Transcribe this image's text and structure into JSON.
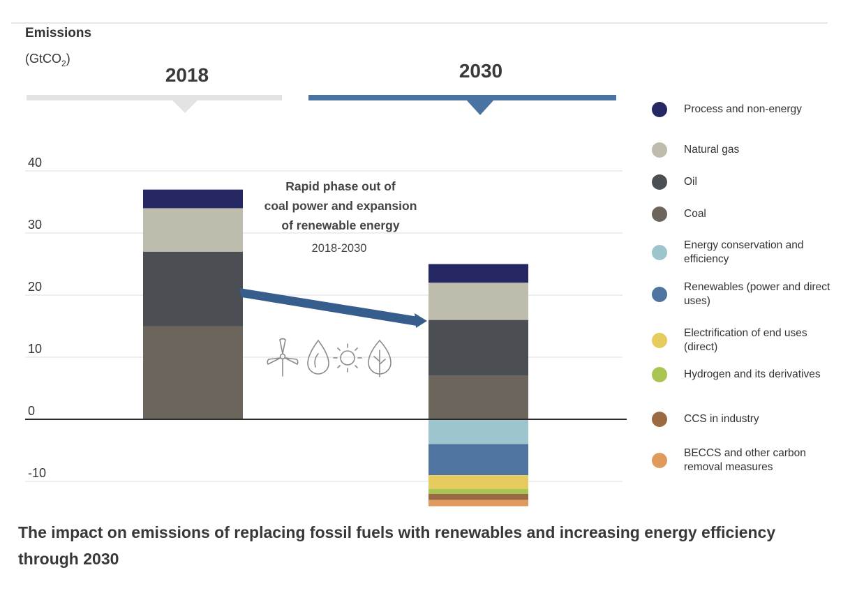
{
  "chart_data": {
    "type": "bar",
    "stacked": true,
    "title": "The impact on emissions of replacing fossil fuels with renewables and increasing energy efficiency through 2030",
    "ylabel_line1": "Emissions",
    "ylabel_unit_prefix": "(GtCO",
    "ylabel_unit_sub": "2",
    "ylabel_unit_suffix": ")",
    "ylim": [
      -14,
      40
    ],
    "yticks": [
      40,
      30,
      20,
      10,
      0,
      -10
    ],
    "ytick_labels": [
      "40",
      "30",
      "20",
      "10",
      "0",
      "-10"
    ],
    "grid": true,
    "legend_position": "right",
    "categories": [
      "2018",
      "2030"
    ],
    "series": [
      {
        "name": "Coal",
        "color": "#6b655b",
        "values": [
          15,
          7
        ]
      },
      {
        "name": "Oil",
        "color": "#4b4f54",
        "values": [
          12,
          9
        ]
      },
      {
        "name": "Natural gas",
        "color": "#bdbcad",
        "values": [
          7,
          6
        ]
      },
      {
        "name": "Process and non-energy",
        "color": "#252762",
        "values": [
          3,
          3
        ]
      },
      {
        "name": "Energy conservation and efficiency",
        "color": "#9ec5cd",
        "values": [
          0,
          -4
        ]
      },
      {
        "name": "Renewables (power and direct uses)",
        "color": "#4f749f",
        "values": [
          0,
          -5
        ]
      },
      {
        "name": "Electrification of end uses (direct)",
        "color": "#e6cc5e",
        "values": [
          0,
          -2.2
        ]
      },
      {
        "name": "Hydrogen and its derivatives",
        "color": "#a8c552",
        "values": [
          0,
          -0.8
        ]
      },
      {
        "name": "CCS in industry",
        "color": "#9a6a43",
        "values": [
          0,
          -1
        ]
      },
      {
        "name": "BECCS and other carbon removal measures",
        "color": "#e09a5e",
        "values": [
          0,
          -1
        ]
      }
    ],
    "annotation": {
      "lines": [
        "Rapid phase out of",
        "coal power and expansion",
        "of renewable energy"
      ],
      "period": "2018-2030"
    }
  },
  "legend": [
    {
      "label": "Process and non-energy",
      "color": "#252762"
    },
    {
      "label": "Natural gas",
      "color": "#bdbcad"
    },
    {
      "label": "Oil",
      "color": "#4b4f54"
    },
    {
      "label": "Coal",
      "color": "#6b655b"
    },
    {
      "label": "Energy conservation and efficiency",
      "color": "#9ec5cd"
    },
    {
      "label": "Renewables (power and direct uses)",
      "color": "#4f749f"
    },
    {
      "label": "Electrification of end uses (direct)",
      "color": "#e6cc5e"
    },
    {
      "label": "Hydrogen and its derivatives",
      "color": "#a8c552"
    },
    {
      "label": "CCS in industry",
      "color": "#9a6a43"
    },
    {
      "label": "BECCS and other carbon removal measures",
      "color": "#e09a5e"
    }
  ],
  "header_colors": {
    "2018": "#e3e3e3",
    "2030": "#4a72a3"
  },
  "arrow_color": "#365d8c",
  "icons": [
    "wind-turbine-icon",
    "water-drop-icon",
    "sun-icon",
    "leaf-icon"
  ]
}
